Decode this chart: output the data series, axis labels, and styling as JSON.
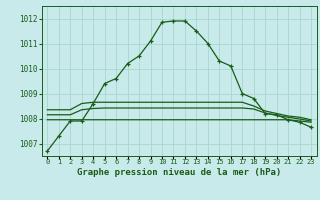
{
  "title": "Graphe pression niveau de la mer (hPa)",
  "bg_color": "#c8eaea",
  "grid_color": "#a8d8cc",
  "line_color": "#1a5c1a",
  "x_labels": [
    "0",
    "1",
    "2",
    "3",
    "4",
    "5",
    "6",
    "7",
    "8",
    "9",
    "10",
    "11",
    "12",
    "13",
    "14",
    "15",
    "16",
    "17",
    "18",
    "19",
    "20",
    "21",
    "22",
    "23"
  ],
  "main_series": [
    1006.7,
    1007.3,
    1007.9,
    1007.9,
    1008.6,
    1009.4,
    1009.6,
    1010.2,
    1010.5,
    1011.1,
    1011.85,
    1011.9,
    1011.9,
    1011.5,
    1011.0,
    1010.3,
    1010.1,
    1009.0,
    1008.8,
    1008.2,
    1008.15,
    1007.95,
    1007.85,
    1007.65
  ],
  "flat_series1": [
    1007.95,
    1007.95,
    1007.95,
    1007.95,
    1007.95,
    1007.95,
    1007.95,
    1007.95,
    1007.95,
    1007.95,
    1007.95,
    1007.95,
    1007.95,
    1007.95,
    1007.95,
    1007.95,
    1007.95,
    1007.95,
    1007.95,
    1007.95,
    1007.95,
    1007.95,
    1007.9,
    1007.85
  ],
  "flat_series2": [
    1008.35,
    1008.35,
    1008.35,
    1008.6,
    1008.65,
    1008.65,
    1008.65,
    1008.65,
    1008.65,
    1008.65,
    1008.65,
    1008.65,
    1008.65,
    1008.65,
    1008.65,
    1008.65,
    1008.65,
    1008.65,
    1008.5,
    1008.3,
    1008.2,
    1008.1,
    1008.05,
    1007.95
  ],
  "flat_series3": [
    1008.15,
    1008.15,
    1008.15,
    1008.35,
    1008.4,
    1008.42,
    1008.42,
    1008.42,
    1008.42,
    1008.42,
    1008.42,
    1008.42,
    1008.42,
    1008.42,
    1008.42,
    1008.42,
    1008.42,
    1008.42,
    1008.38,
    1008.22,
    1008.12,
    1008.05,
    1007.98,
    1007.9
  ],
  "ylim": [
    1006.5,
    1012.5
  ],
  "yticks": [
    1007,
    1008,
    1009,
    1010,
    1011,
    1012
  ],
  "xlim": [
    -0.5,
    23.5
  ]
}
